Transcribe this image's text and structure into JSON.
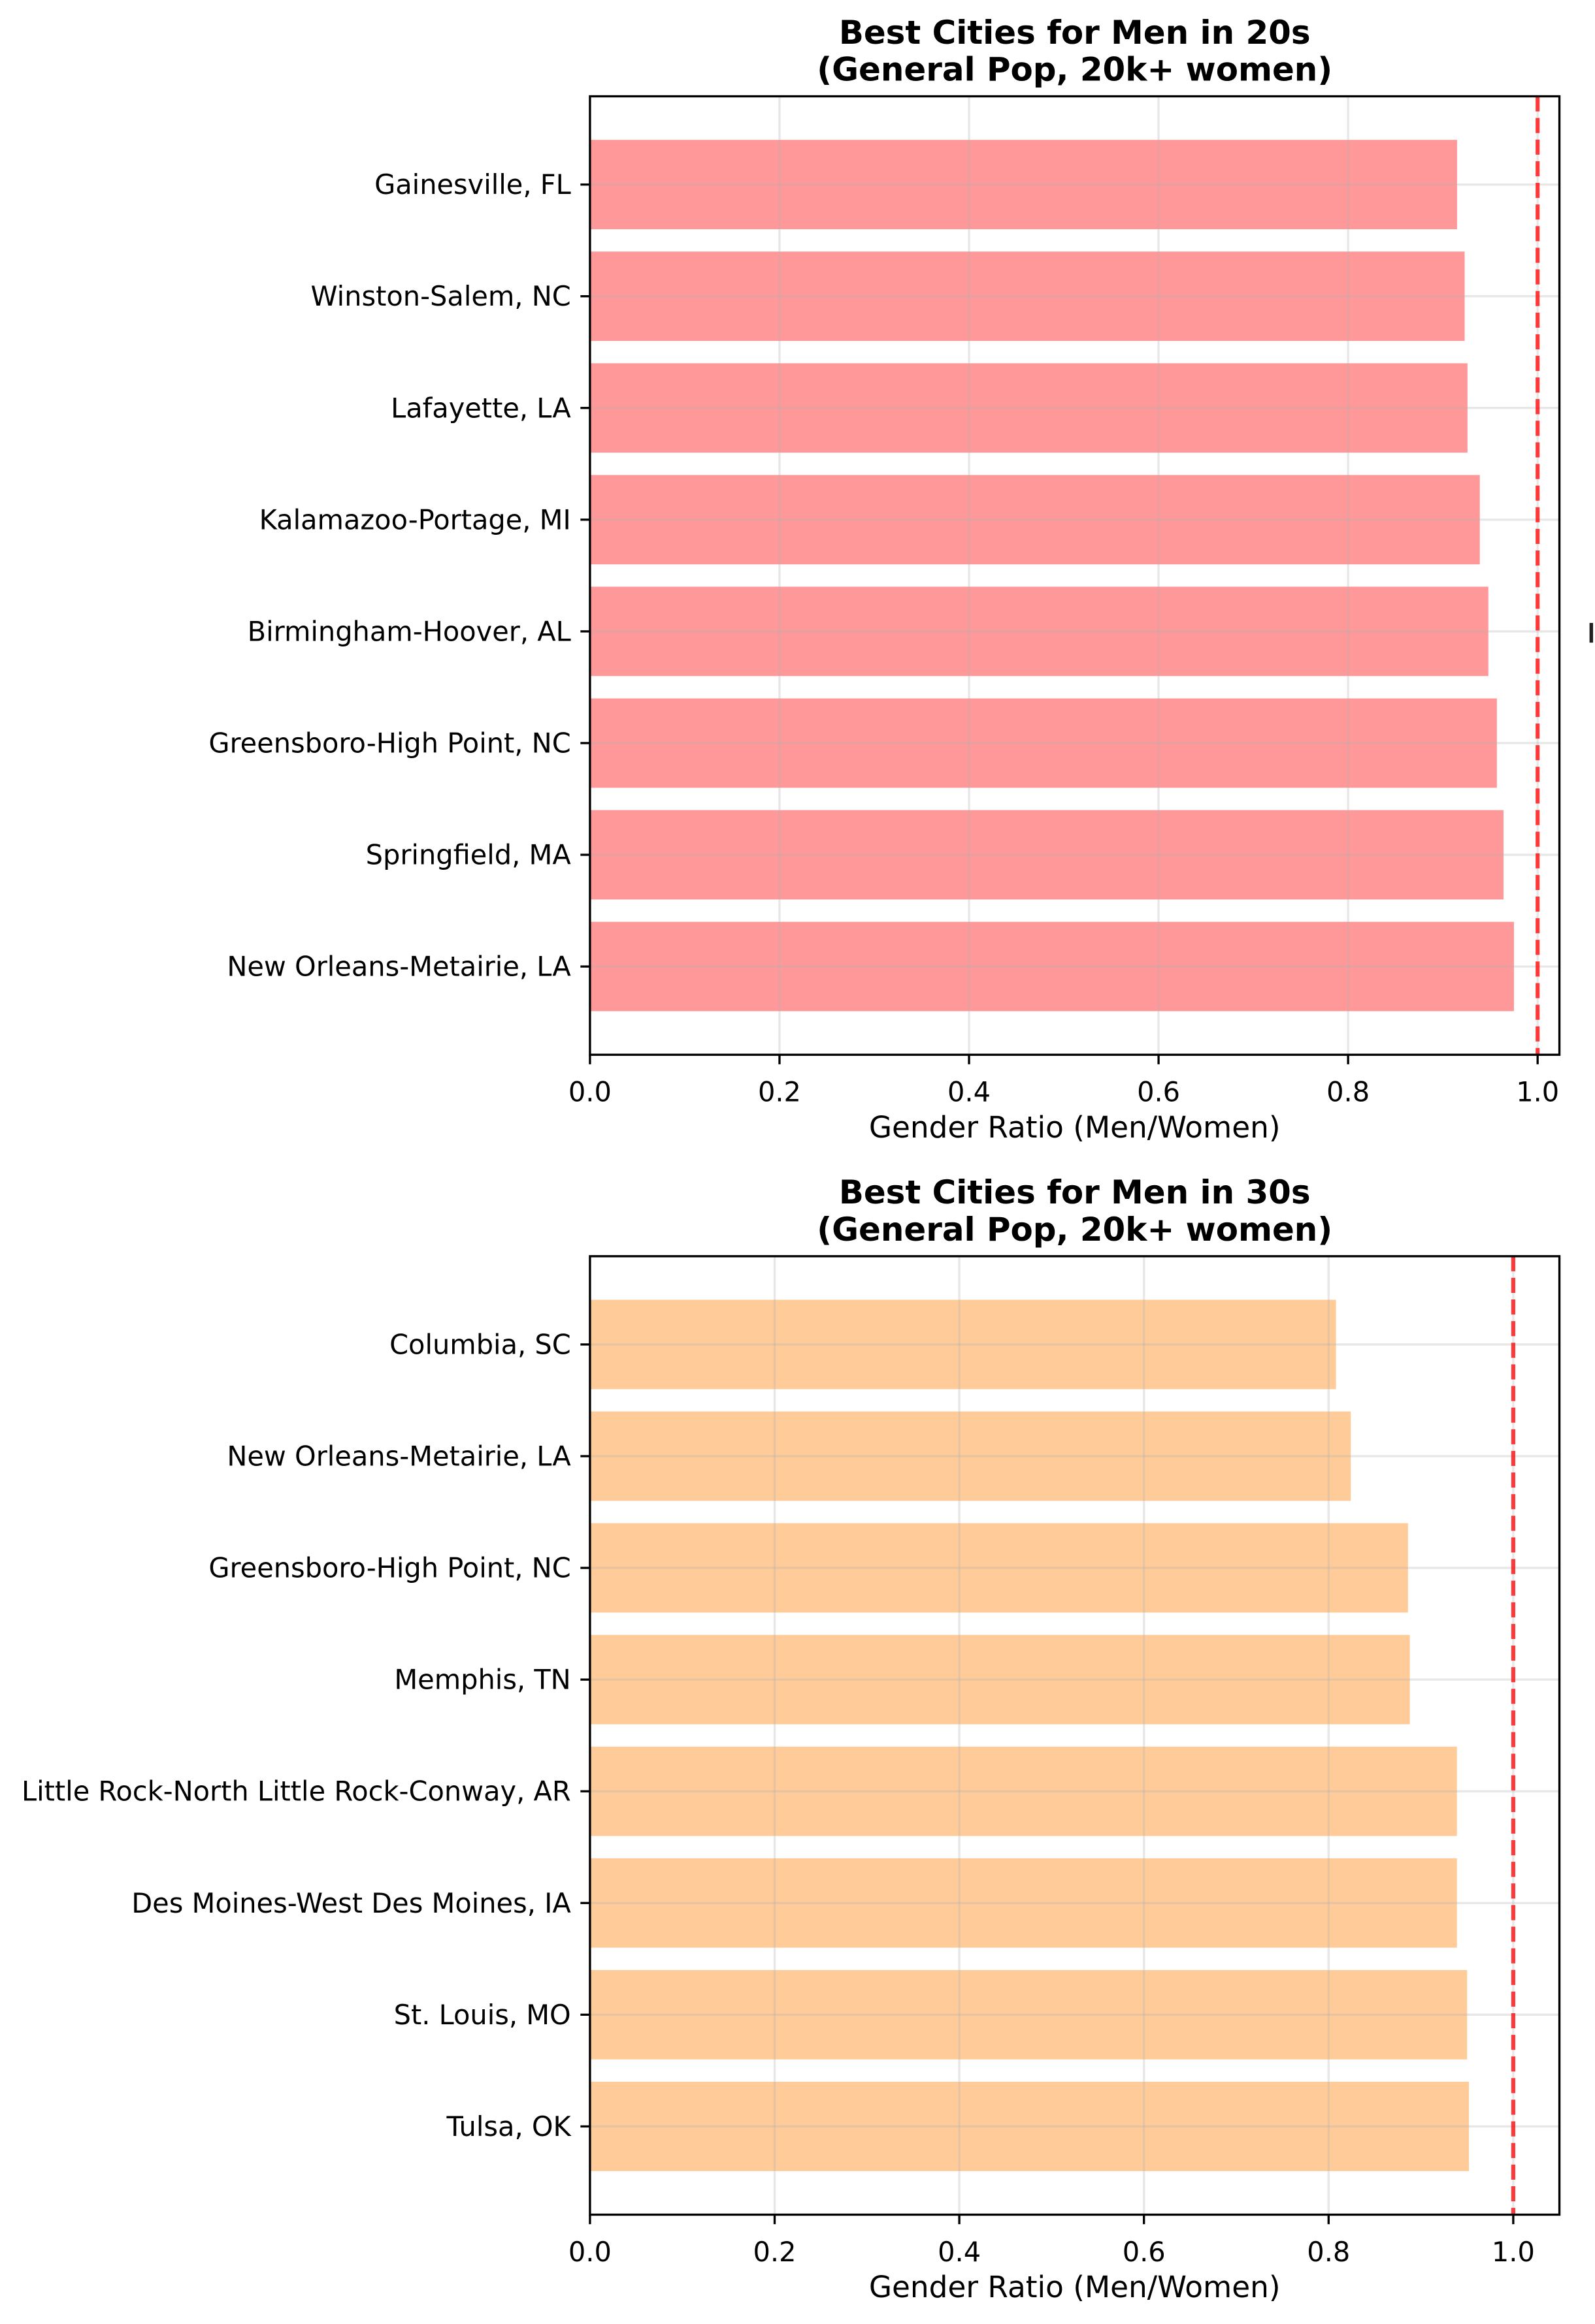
{
  "chart_data": [
    {
      "type": "bar",
      "orientation": "horizontal",
      "title_lines": [
        "Best Cities for Men in 20s",
        "(General Pop, 20k+ women)"
      ],
      "xlabel": "Gender Ratio (Men/Women)",
      "xlim": [
        0,
        1.023
      ],
      "xticks": [
        0.0,
        0.2,
        0.4,
        0.6,
        0.8,
        1.0
      ],
      "xtick_labels": [
        "0.0",
        "0.2",
        "0.4",
        "0.6",
        "0.8",
        "1.0"
      ],
      "categories": [
        "Gainesville, FL",
        "Winston-Salem, NC",
        "Lafayette, LA",
        "Kalamazoo-Portage, MI",
        "Birmingham-Hoover, AL",
        "Greensboro-High Point, NC",
        "Springfield, MA",
        "New Orleans-Metairie, LA"
      ],
      "values": [
        0.915,
        0.923,
        0.926,
        0.939,
        0.948,
        0.957,
        0.964,
        0.975
      ],
      "bar_color": "#ff9999",
      "reference_line": {
        "x": 1.0,
        "color": "#ff0000",
        "style": "dashed"
      },
      "grid": true
    },
    {
      "type": "bar",
      "orientation": "horizontal",
      "title_lines": [
        "Best Cities for Men in 30s",
        "(General Pop, 20k+ women)"
      ],
      "xlabel": "Gender Ratio (Men/Women)",
      "xlim": [
        0,
        1.05
      ],
      "xticks": [
        0.0,
        0.2,
        0.4,
        0.6,
        0.8,
        1.0
      ],
      "xtick_labels": [
        "0.0",
        "0.2",
        "0.4",
        "0.6",
        "0.8",
        "1.0"
      ],
      "categories": [
        "Columbia, SC",
        "New Orleans-Metairie, LA",
        "Greensboro-High Point, NC",
        "Memphis, TN",
        "Little Rock-North Little Rock-Conway, AR",
        "Des Moines-West Des Moines, IA",
        "St. Louis, MO",
        "Tulsa, OK"
      ],
      "values": [
        0.808,
        0.824,
        0.886,
        0.888,
        0.939,
        0.939,
        0.95,
        0.952
      ],
      "bar_color": "#ffcc99",
      "reference_line": {
        "x": 1.0,
        "color": "#ff0000",
        "style": "dashed"
      },
      "grid": true
    }
  ]
}
